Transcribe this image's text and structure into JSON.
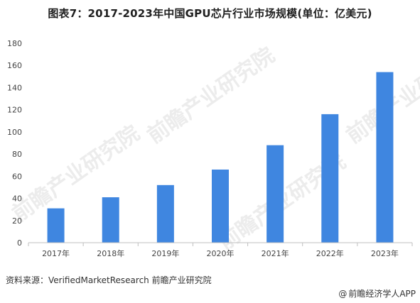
{
  "header": {
    "title": "图表7：2017-2023年中国GPU芯片行业市场规模(单位：亿美元)"
  },
  "footer": {
    "source": "资料来源：VerifiedMarketResearch 前瞻产业研究院",
    "credit": "前瞻经济学人APP",
    "credit_icon": "at-sign-icon"
  },
  "watermark": {
    "text": "前瞻产业研究院"
  },
  "colors": {
    "bar": "#3f86e0",
    "axis": "#bfbfbf",
    "tick_text": "#444444"
  },
  "chart_data": {
    "type": "bar",
    "title": "图表7：2017-2023年中国GPU芯片行业市场规模(单位：亿美元)",
    "xlabel": "",
    "ylabel": "",
    "categories": [
      "2017年",
      "2018年",
      "2019年",
      "2020年",
      "2021年",
      "2022年",
      "2023年"
    ],
    "series": [
      {
        "values": [
          31,
          41,
          52,
          66,
          88,
          116,
          154
        ]
      }
    ],
    "ylim": [
      0,
      180
    ],
    "yticks": [
      0,
      20,
      40,
      60,
      80,
      100,
      120,
      140,
      160,
      180
    ],
    "grid": false,
    "legend": "none"
  }
}
